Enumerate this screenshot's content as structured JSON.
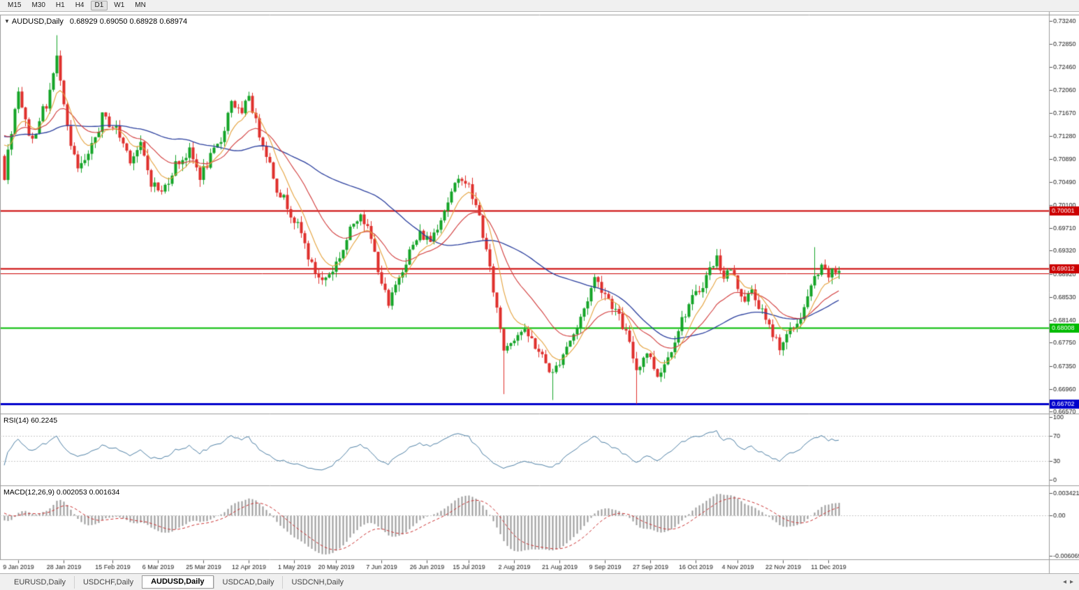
{
  "toolbar": {
    "timeframes": [
      {
        "label": "M15",
        "active": false
      },
      {
        "label": "M30",
        "active": false
      },
      {
        "label": "H1",
        "active": false
      },
      {
        "label": "H4",
        "active": false
      },
      {
        "label": "D1",
        "active": true
      },
      {
        "label": "W1",
        "active": false
      },
      {
        "label": "MN",
        "active": false
      }
    ]
  },
  "chart_header": {
    "collapse_icon": "▼",
    "title": "AUDUSD,Daily",
    "ohlc": "0.68929 0.69050 0.68928 0.68974"
  },
  "indicators": {
    "rsi_label": "RSI(14) 60.2245",
    "macd_label": "MACD(12,26,9) 0.002053 0.001634"
  },
  "tabs": {
    "items": [
      {
        "label": "EURUSD,Daily",
        "active": false
      },
      {
        "label": "USDCHF,Daily",
        "active": false
      },
      {
        "label": "AUDUSD,Daily",
        "active": true
      },
      {
        "label": "USDCAD,Daily",
        "active": false
      },
      {
        "label": "USDCNH,Daily",
        "active": false
      }
    ],
    "scroll_left_icon": "◂",
    "scroll_right_icon": "▸"
  },
  "chart_data": {
    "type": "candlestick",
    "symbol": "AUDUSD",
    "period": "Daily",
    "ohlc_current": {
      "open": 0.68929,
      "high": 0.6905,
      "low": 0.68928,
      "close": 0.68974
    },
    "visible_bars": 240,
    "price_range": {
      "min": 0.6655,
      "max": 0.7334
    },
    "price_axis_ticks": [
      "0.73240",
      "0.72850",
      "0.72460",
      "0.72060",
      "0.71670",
      "0.71280",
      "0.70890",
      "0.70490",
      "0.70100",
      "0.69710",
      "0.69320",
      "0.68920",
      "0.68530",
      "0.68140",
      "0.67750",
      "0.67350",
      "0.66960",
      "0.66570"
    ],
    "date_ticks": [
      {
        "index": 4,
        "label": "9 Jan 2019"
      },
      {
        "index": 17,
        "label": "28 Jan 2019"
      },
      {
        "index": 31,
        "label": "15 Feb 2019"
      },
      {
        "index": 44,
        "label": "6 Mar 2019"
      },
      {
        "index": 57,
        "label": "25 Mar 2019"
      },
      {
        "index": 70,
        "label": "12 Apr 2019"
      },
      {
        "index": 83,
        "label": "1 May 2019"
      },
      {
        "index": 95,
        "label": "20 May 2019"
      },
      {
        "index": 108,
        "label": "7 Jun 2019"
      },
      {
        "index": 121,
        "label": "26 Jun 2019"
      },
      {
        "index": 133,
        "label": "15 Jul 2019"
      },
      {
        "index": 146,
        "label": "2 Aug 2019"
      },
      {
        "index": 159,
        "label": "21 Aug 2019"
      },
      {
        "index": 172,
        "label": "9 Sep 2019"
      },
      {
        "index": 185,
        "label": "27 Sep 2019"
      },
      {
        "index": 198,
        "label": "16 Oct 2019"
      },
      {
        "index": 210,
        "label": "4 Nov 2019"
      },
      {
        "index": 223,
        "label": "22 Nov 2019"
      },
      {
        "index": 236,
        "label": "11 Dec 2019"
      }
    ],
    "close_path_anchors": [
      [
        -60,
        0.708
      ],
      [
        -45,
        0.713
      ],
      [
        -30,
        0.71
      ],
      [
        -15,
        0.715
      ],
      [
        -5,
        0.716
      ],
      [
        -1,
        0.71
      ],
      [
        0,
        0.706
      ],
      [
        2,
        0.714
      ],
      [
        4,
        0.721
      ],
      [
        6,
        0.715
      ],
      [
        8,
        0.712
      ],
      [
        10,
        0.716
      ],
      [
        12,
        0.718
      ],
      [
        15,
        0.726
      ],
      [
        16,
        0.723
      ],
      [
        19,
        0.711
      ],
      [
        21,
        0.707
      ],
      [
        24,
        0.709
      ],
      [
        28,
        0.716
      ],
      [
        32,
        0.714
      ],
      [
        36,
        0.709
      ],
      [
        39,
        0.711
      ],
      [
        42,
        0.705
      ],
      [
        45,
        0.703
      ],
      [
        49,
        0.708
      ],
      [
        53,
        0.71
      ],
      [
        56,
        0.706
      ],
      [
        59,
        0.709
      ],
      [
        62,
        0.712
      ],
      [
        65,
        0.719
      ],
      [
        68,
        0.716
      ],
      [
        70,
        0.72
      ],
      [
        72,
        0.715
      ],
      [
        75,
        0.71
      ],
      [
        78,
        0.704
      ],
      [
        81,
        0.701
      ],
      [
        85,
        0.696
      ],
      [
        88,
        0.6905
      ],
      [
        91,
        0.688
      ],
      [
        94,
        0.69
      ],
      [
        97,
        0.6935
      ],
      [
        100,
        0.698
      ],
      [
        102,
        0.7
      ],
      [
        105,
        0.695
      ],
      [
        108,
        0.688
      ],
      [
        110,
        0.6835
      ],
      [
        113,
        0.689
      ],
      [
        116,
        0.693
      ],
      [
        119,
        0.696
      ],
      [
        122,
        0.695
      ],
      [
        125,
        0.699
      ],
      [
        128,
        0.703
      ],
      [
        131,
        0.706
      ],
      [
        133,
        0.704
      ],
      [
        136,
        0.699
      ],
      [
        138,
        0.693
      ],
      [
        140,
        0.6865
      ],
      [
        142,
        0.68
      ],
      [
        143,
        0.6765
      ],
      [
        145,
        0.678
      ],
      [
        148,
        0.6795
      ],
      [
        151,
        0.678
      ],
      [
        154,
        0.675
      ],
      [
        157,
        0.672
      ],
      [
        159,
        0.6745
      ],
      [
        161,
        0.677
      ],
      [
        164,
        0.68
      ],
      [
        167,
        0.685
      ],
      [
        169,
        0.6885
      ],
      [
        172,
        0.686
      ],
      [
        175,
        0.683
      ],
      [
        178,
        0.679
      ],
      [
        181,
        0.673
      ],
      [
        184,
        0.676
      ],
      [
        187,
        0.672
      ],
      [
        190,
        0.675
      ],
      [
        193,
        0.68
      ],
      [
        196,
        0.684
      ],
      [
        199,
        0.6865
      ],
      [
        202,
        0.69
      ],
      [
        204,
        0.692
      ],
      [
        206,
        0.689
      ],
      [
        208,
        0.69
      ],
      [
        210,
        0.687
      ],
      [
        212,
        0.685
      ],
      [
        214,
        0.686
      ],
      [
        216,
        0.684
      ],
      [
        218,
        0.681
      ],
      [
        220,
        0.679
      ],
      [
        222,
        0.677
      ],
      [
        224,
        0.6785
      ],
      [
        226,
        0.68
      ],
      [
        228,
        0.682
      ],
      [
        230,
        0.685
      ],
      [
        232,
        0.6885
      ],
      [
        234,
        0.69
      ],
      [
        236,
        0.689
      ],
      [
        239,
        0.68974
      ]
    ],
    "wick_extremes": [
      {
        "index": 15,
        "high": 0.73
      },
      {
        "index": 143,
        "low": 0.6687
      },
      {
        "index": 157,
        "low": 0.6677
      },
      {
        "index": 181,
        "low": 0.667
      },
      {
        "index": 232,
        "high": 0.6938
      },
      {
        "index": 239,
        "high": 0.6905,
        "low": 0.68928
      }
    ],
    "last_close": 0.68974,
    "horizontal_lines": [
      {
        "value": 0.70001,
        "color": "#cc0000",
        "width": 2,
        "label": "0.70001"
      },
      {
        "value": 0.69012,
        "color": "#cc0000",
        "width": 2,
        "label": "0.69012"
      },
      {
        "value": 0.6893,
        "color": "#cc0000",
        "width": 1,
        "label": null
      },
      {
        "value": 0.68008,
        "color": "#00bb00",
        "width": 2,
        "label": "0.68008"
      },
      {
        "value": 0.66702,
        "color": "#0000cc",
        "width": 3,
        "label": "0.66702"
      }
    ],
    "colors": {
      "bull": "#14a427",
      "bear": "#df2f2c",
      "background": "#ffffff",
      "axis_text": "#1a1a1a",
      "grid": "#c8c8c8"
    },
    "moving_averages": [
      {
        "name": "fast",
        "period": 8,
        "color": "#e5a23c"
      },
      {
        "name": "medium",
        "period": 21,
        "color": "#d23a3a"
      },
      {
        "name": "slow",
        "period": 50,
        "color": "#2b3f9e"
      }
    ],
    "rsi": {
      "period": 14,
      "current": 60.2245,
      "axis_ticks": [
        "100",
        "70",
        "30",
        "0"
      ],
      "axis_values": [
        100,
        70,
        30,
        0
      ],
      "levels": [
        70,
        30
      ],
      "color": "#4f81a6"
    },
    "macd": {
      "fast": 12,
      "slow": 26,
      "signal_period": 9,
      "macd_current": 0.002053,
      "signal_current": 0.001634,
      "axis": {
        "max": 0.003421,
        "min": -0.006069
      },
      "axis_ticks": [
        "0.003421",
        "0.00",
        "-0.006069"
      ],
      "histogram_color": "#9a9a9a",
      "signal_color": "#cc3333"
    }
  }
}
